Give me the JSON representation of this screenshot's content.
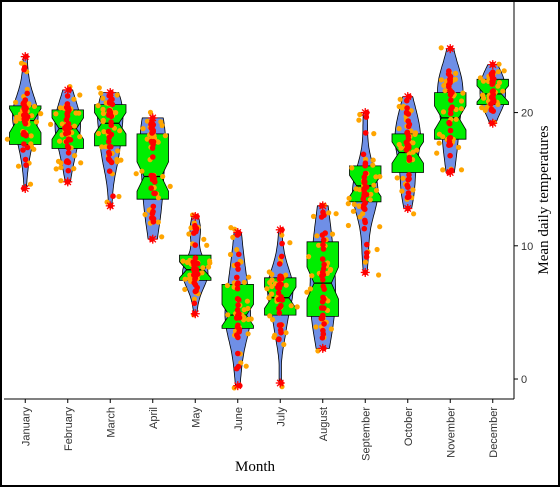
{
  "chart_data": {
    "type": "violin+box+strip",
    "xlabel": "Month",
    "ylabel": "Mean daily temperatures",
    "y_axis_side": "right",
    "ylim": [
      -1.5,
      28
    ],
    "yticks": [
      0,
      10,
      20
    ],
    "grid": false,
    "colors": {
      "violin": "#6f8fe6",
      "box": "#00ee00",
      "jitter": "#ffa500",
      "points": "#ff0000",
      "outline": "#000000"
    },
    "categories": [
      "January",
      "February",
      "March",
      "April",
      "May",
      "June",
      "July",
      "August",
      "September",
      "October",
      "November",
      "December"
    ],
    "boxes": [
      {
        "month": "January",
        "min": 14.3,
        "q1": 17.6,
        "median": 19.4,
        "q3": 20.5,
        "max": 24.2,
        "notch": 0.9
      },
      {
        "month": "February",
        "min": 14.8,
        "q1": 17.3,
        "median": 18.8,
        "q3": 20.2,
        "max": 21.7,
        "notch": 0.8
      },
      {
        "month": "March",
        "min": 13.0,
        "q1": 17.5,
        "median": 19.2,
        "q3": 20.6,
        "max": 21.5,
        "notch": 0.8
      },
      {
        "month": "April",
        "min": 10.5,
        "q1": 13.5,
        "median": 15.2,
        "q3": 18.4,
        "max": 19.6,
        "notch": 1.1
      },
      {
        "month": "May",
        "min": 4.9,
        "q1": 7.4,
        "median": 8.2,
        "q3": 9.3,
        "max": 12.2,
        "notch": 0.6
      },
      {
        "month": "June",
        "min": -0.5,
        "q1": 3.8,
        "median": 4.8,
        "q3": 7.1,
        "max": 11.0,
        "notch": 0.8
      },
      {
        "month": "July",
        "min": -0.3,
        "q1": 4.8,
        "median": 6.1,
        "q3": 7.6,
        "max": 11.2,
        "notch": 0.8
      },
      {
        "month": "August",
        "min": 2.3,
        "q1": 4.7,
        "median": 7.2,
        "q3": 10.3,
        "max": 13.0,
        "notch": 1.2
      },
      {
        "month": "September",
        "min": 8.0,
        "q1": 13.3,
        "median": 14.5,
        "q3": 16.0,
        "max": 20.0,
        "notch": 0.8
      },
      {
        "month": "October",
        "min": 12.8,
        "q1": 15.5,
        "median": 17.0,
        "q3": 18.4,
        "max": 21.2,
        "notch": 0.8
      },
      {
        "month": "November",
        "min": 15.5,
        "q1": 18.0,
        "median": 19.6,
        "q3": 21.5,
        "max": 24.8,
        "notch": 0.9
      },
      {
        "month": "December",
        "min": 19.2,
        "q1": 20.6,
        "median": 21.4,
        "q3": 22.5,
        "max": 23.6,
        "notch": 0.6
      }
    ]
  }
}
